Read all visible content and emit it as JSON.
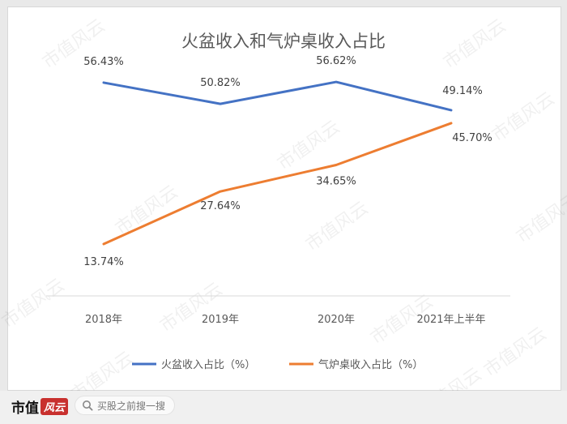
{
  "chart_data": {
    "type": "line",
    "title": "火盆收入和气炉桌收入占比",
    "categories": [
      "2018年",
      "2019年",
      "2020年",
      "2021年上半年"
    ],
    "ylim": [
      0,
      65
    ],
    "grid": false,
    "legend_position": "bottom",
    "series": [
      {
        "name": "火盆收入占比（%）",
        "color": "#4472c4",
        "values": [
          56.43,
          50.82,
          56.62,
          49.14
        ],
        "labels": [
          "56.43%",
          "50.82%",
          "56.62%",
          "49.14%"
        ]
      },
      {
        "name": "气炉桌收入占比（%）",
        "color": "#ed7d31",
        "values": [
          13.74,
          27.64,
          34.65,
          45.7
        ],
        "labels": [
          "13.74%",
          "27.64%",
          "34.65%",
          "45.70%"
        ]
      }
    ]
  },
  "footer": {
    "brand_text": "市值",
    "brand_badge": "风云",
    "search_placeholder": "买股之前搜一搜"
  },
  "watermark": "市值风云",
  "colors": {
    "axis": "#d9d9d9",
    "text": "#595959"
  }
}
